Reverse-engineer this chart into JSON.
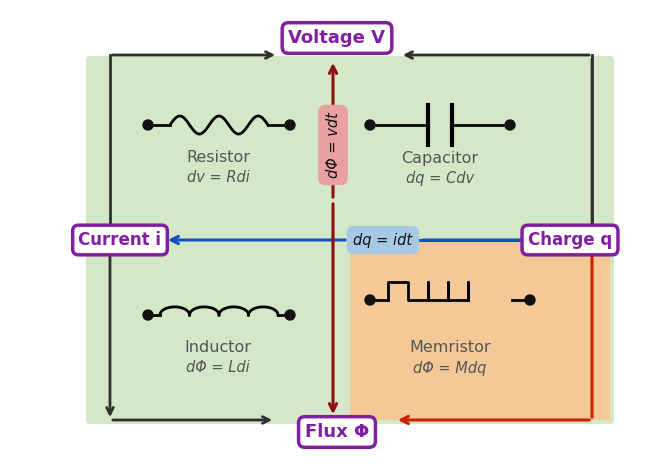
{
  "bg_color": "#ffffff",
  "green_bg": "#d4e8c8",
  "orange_bg": "#f5c898",
  "pink_box": "#e8a0a0",
  "blue_box": "#a8c8e8",
  "purple_text": "#8020a0",
  "purple_border": "#8020a0",
  "arrow_dark": "#303030",
  "arrow_red": "#cc2000",
  "arrow_blue": "#1050c0",
  "arrow_darkred": "#8b1010",
  "label_color": "#555555",
  "voltage_label": "Voltage V",
  "current_label": "Current i",
  "charge_label": "Charge q",
  "flux_label": "Flux Φ",
  "dq_idt_label": "dq = idt",
  "dphi_vdt_label": "dΦ = vdt",
  "resistor_label1": "Resistor",
  "resistor_label2": "dv = Rdi",
  "capacitor_label1": "Capacitor",
  "capacitor_label2": "dq = Cdv",
  "inductor_label1": "Inductor",
  "inductor_label2": "dΦ = Ldi",
  "memristor_label1": "Memristor",
  "memristor_label2": "dΦ = Mdq"
}
